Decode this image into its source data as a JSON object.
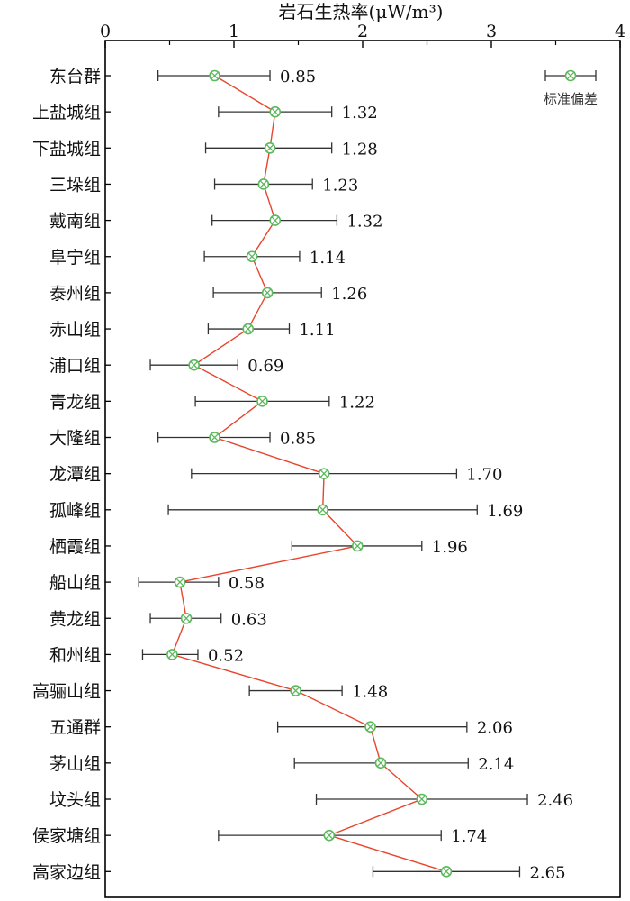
{
  "chart_data": {
    "type": "scatter",
    "title": "",
    "xlabel": "岩石生热率(μW/m³)",
    "xlim": [
      0,
      4
    ],
    "xticks": [
      0,
      1,
      2,
      3,
      4
    ],
    "legend": {
      "label": "标准偏差",
      "position": "top-right"
    },
    "colors": {
      "line": "#e8452c",
      "marker": "#5cb85c",
      "errorbar": "#333333"
    },
    "categories": [
      "东台群",
      "上盐城组",
      "下盐城组",
      "三垛组",
      "戴南组",
      "阜宁组",
      "泰州组",
      "赤山组",
      "浦口组",
      "青龙组",
      "大隆组",
      "龙潭组",
      "孤峰组",
      "栖霞组",
      "船山组",
      "黄龙组",
      "和州组",
      "高骊山组",
      "五通群",
      "茅山组",
      "坟头组",
      "侯家塘组",
      "高家边组"
    ],
    "values": [
      0.85,
      1.32,
      1.28,
      1.23,
      1.32,
      1.14,
      1.26,
      1.11,
      0.69,
      1.22,
      0.85,
      1.7,
      1.69,
      1.96,
      0.58,
      0.63,
      0.52,
      1.48,
      2.06,
      2.14,
      2.46,
      1.74,
      2.65
    ],
    "value_labels": [
      "0.85",
      "1.32",
      "1.28",
      "1.23",
      "1.32",
      "1.14",
      "1.26",
      "1.11",
      "0.69",
      "1.22",
      "0.85",
      "1.70",
      "1.69",
      "1.96",
      "0.58",
      "0.63",
      "0.52",
      "1.48",
      "2.06",
      "2.14",
      "2.46",
      "1.74",
      "2.65"
    ],
    "error_low": [
      0.41,
      0.88,
      0.78,
      0.85,
      0.83,
      0.77,
      0.84,
      0.8,
      0.35,
      0.7,
      0.41,
      0.67,
      0.49,
      1.45,
      0.26,
      0.35,
      0.29,
      1.12,
      1.34,
      1.47,
      1.64,
      0.88,
      2.08
    ],
    "error_high": [
      1.28,
      1.76,
      1.76,
      1.61,
      1.8,
      1.51,
      1.68,
      1.43,
      1.03,
      1.74,
      1.28,
      2.73,
      2.89,
      2.46,
      0.88,
      0.9,
      0.72,
      1.84,
      2.81,
      2.82,
      3.28,
      2.61,
      3.22
    ]
  }
}
